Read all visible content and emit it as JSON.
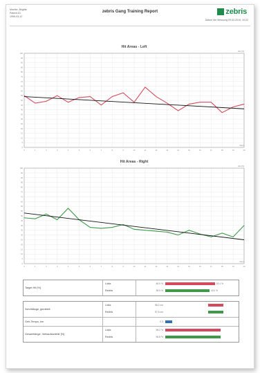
{
  "header": {
    "info_lines": [
      "Mueller, Brigitte",
      "Patient-ID",
      "1956-03-12"
    ],
    "title": "zebris Gang Training Report",
    "logo_text": "zebris",
    "date_line": "Datum der Messung 09.03.2015, 10:22"
  },
  "colors": {
    "left": "#d24a5c",
    "right": "#3e9a4a",
    "trend": "#111111",
    "grid": "#e2e2e2",
    "brand": "#1f8a4c"
  },
  "chart_data": [
    {
      "type": "line",
      "title": "Hit Areas - Left",
      "ylabel_tag": "Hits [%]",
      "xlabel_tag": "Steps",
      "xlim": [
        0,
        20
      ],
      "ylim": [
        0,
        100
      ],
      "x_ticks": [
        0,
        1,
        2,
        3,
        4,
        5,
        6,
        7,
        8,
        9,
        10,
        11,
        12,
        13,
        14,
        15,
        16,
        17,
        18,
        19,
        20
      ],
      "y_ticks": [
        0,
        5,
        10,
        15,
        20,
        25,
        30,
        35,
        40,
        45,
        50,
        55,
        60,
        65,
        70,
        75,
        80,
        85,
        90,
        95,
        100
      ],
      "series": [
        {
          "color_key": "left",
          "x": [
            0,
            1,
            2,
            3,
            4,
            5,
            6,
            7,
            8,
            9,
            10,
            11,
            12,
            13,
            14,
            15,
            16,
            17,
            18,
            19,
            20
          ],
          "values": [
            55,
            47,
            49,
            55,
            48,
            53,
            54,
            45,
            54,
            58,
            48,
            64,
            54,
            47,
            39,
            46,
            48,
            48,
            37,
            43,
            46
          ]
        }
      ],
      "trend": {
        "color_key": "trend",
        "from": [
          0,
          54
        ],
        "to": [
          20,
          41
        ]
      }
    },
    {
      "type": "line",
      "title": "Hit Areas - Right",
      "ylabel_tag": "Hits [%]",
      "xlabel_tag": "Steps",
      "xlim": [
        0,
        20
      ],
      "ylim": [
        0,
        100
      ],
      "x_ticks": [
        0,
        1,
        2,
        3,
        4,
        5,
        6,
        7,
        8,
        9,
        10,
        11,
        12,
        13,
        14,
        15,
        16,
        17,
        18,
        19,
        20
      ],
      "y_ticks": [
        0,
        5,
        10,
        15,
        20,
        25,
        30,
        35,
        40,
        45,
        50,
        55,
        60,
        65,
        70,
        75,
        80,
        85,
        90,
        95,
        100
      ],
      "series": [
        {
          "color_key": "right",
          "x": [
            0,
            1,
            2,
            3,
            4,
            5,
            6,
            7,
            8,
            9,
            10,
            11,
            12,
            13,
            14,
            15,
            16,
            17,
            18,
            19,
            20
          ],
          "values": [
            48,
            47,
            52,
            46,
            58,
            46,
            38,
            37,
            38,
            41,
            36,
            35,
            34,
            33,
            30,
            35,
            31,
            28,
            32,
            28,
            40
          ]
        }
      ],
      "trend": {
        "color_key": "trend",
        "from": [
          0,
          53
        ],
        "to": [
          20,
          25
        ]
      }
    }
  ],
  "table": {
    "groups": [
      {
        "label": "Target Hit [%]",
        "rows": [
          {
            "side": "Links",
            "value": "48.9 %",
            "bar_pct": 72,
            "color_key": "left",
            "extra": "53.1 %"
          },
          {
            "side": "Rechts",
            "value": "38.5 %",
            "bar_pct": 64,
            "color_key": "right",
            "extra": "43.0 %"
          }
        ]
      },
      {
        "label": "Schrittlänge, gemittelt",
        "rows": [
          {
            "side": "Links",
            "value": "58.2 cm",
            "bar_pct": 22,
            "color_key": "left",
            "bar_offset_pct": 62
          },
          {
            "side": "Rechts",
            "value": "57.8 cm",
            "bar_pct": 22,
            "color_key": "right",
            "bar_offset_pct": 62
          }
        ]
      },
      {
        "label": "Geh-Tempo, km",
        "rows": [
          {
            "side": "",
            "value": "0.3",
            "bar_pct": 10,
            "color_key": "blue",
            "bar_offset_pct": 0
          }
        ]
      },
      {
        "label": "Gesamtlänge, Verkaufsanteile [%]",
        "rows": [
          {
            "side": "Links",
            "value": "98.2 %",
            "bar_pct": 80,
            "color_key": "left",
            "bar_offset_pct": 0
          },
          {
            "side": "Rechts",
            "value": "96.8 %",
            "bar_pct": 80,
            "color_key": "right",
            "bar_offset_pct": 0
          }
        ]
      }
    ]
  }
}
